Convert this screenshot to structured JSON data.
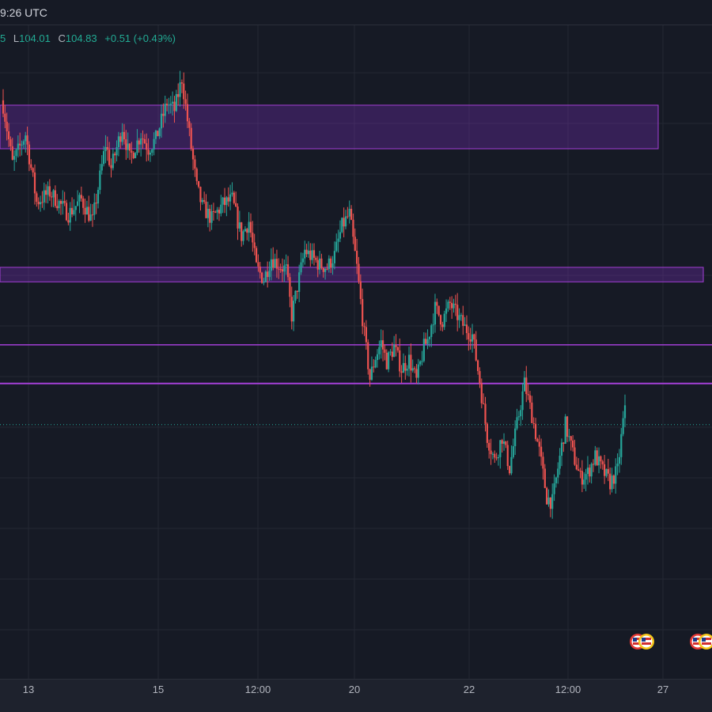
{
  "header": {
    "time_label": "9:26 UTC",
    "ohlc": {
      "low_key": "L",
      "low": "104.01",
      "close_key": "C",
      "close": "104.83",
      "change": "+0.51",
      "change_pct": "(+0.49%)",
      "partial_value": "5"
    }
  },
  "colors": {
    "background": "#161a25",
    "grid": "#242833",
    "up": "#26a69a",
    "down": "#ef5350",
    "zone_fill": "#7b2fbf",
    "zone_stroke": "#a43fd6",
    "price_line": "#26a69a"
  },
  "chart_data": {
    "type": "candlestick",
    "x_tick_labels": [
      "13",
      "15",
      "12:00",
      "20",
      "22",
      "12:00",
      "27"
    ],
    "ylim": [
      103.35,
      106.05
    ],
    "last_close": 104.83,
    "zones": [
      {
        "y_low": 105.54,
        "y_high": 105.72
      },
      {
        "y_low": 104.99,
        "y_high": 105.05
      }
    ],
    "horizontal_lines": [
      104.73,
      104.57
    ],
    "dotted_price_line": 104.4,
    "anchors": [
      [
        0,
        105.72
      ],
      [
        5,
        105.48
      ],
      [
        12,
        105.6
      ],
      [
        18,
        105.32
      ],
      [
        25,
        105.36
      ],
      [
        35,
        105.27
      ],
      [
        42,
        105.33
      ],
      [
        48,
        105.24
      ],
      [
        55,
        105.56
      ],
      [
        58,
        105.46
      ],
      [
        64,
        105.63
      ],
      [
        68,
        105.5
      ],
      [
        74,
        105.6
      ],
      [
        78,
        105.54
      ],
      [
        82,
        105.58
      ],
      [
        88,
        105.73
      ],
      [
        92,
        105.7
      ],
      [
        96,
        105.83
      ],
      [
        100,
        105.6
      ],
      [
        104,
        105.38
      ],
      [
        107,
        105.3
      ],
      [
        112,
        105.25
      ],
      [
        118,
        105.31
      ],
      [
        123,
        105.33
      ],
      [
        128,
        105.18
      ],
      [
        132,
        105.24
      ],
      [
        136,
        105.05
      ],
      [
        140,
        105.0
      ],
      [
        144,
        105.09
      ],
      [
        148,
        105.06
      ],
      [
        152,
        105.04
      ],
      [
        155,
        104.85
      ],
      [
        158,
        104.97
      ],
      [
        162,
        105.12
      ],
      [
        166,
        105.09
      ],
      [
        170,
        105.06
      ],
      [
        174,
        105.05
      ],
      [
        178,
        105.1
      ],
      [
        182,
        105.22
      ],
      [
        186,
        105.27
      ],
      [
        190,
        105.05
      ],
      [
        194,
        104.77
      ],
      [
        197,
        104.59
      ],
      [
        200,
        104.68
      ],
      [
        203,
        104.74
      ],
      [
        206,
        104.66
      ],
      [
        210,
        104.72
      ],
      [
        214,
        104.63
      ],
      [
        218,
        104.67
      ],
      [
        222,
        104.58
      ],
      [
        226,
        104.72
      ],
      [
        228,
        104.75
      ],
      [
        232,
        104.88
      ],
      [
        236,
        104.83
      ],
      [
        240,
        104.9
      ],
      [
        244,
        104.85
      ],
      [
        248,
        104.8
      ],
      [
        252,
        104.77
      ],
      [
        256,
        104.58
      ],
      [
        260,
        104.35
      ],
      [
        264,
        104.25
      ],
      [
        268,
        104.35
      ],
      [
        272,
        104.22
      ],
      [
        276,
        104.4
      ],
      [
        280,
        104.57
      ],
      [
        284,
        104.44
      ],
      [
        288,
        104.29
      ],
      [
        292,
        104.1
      ],
      [
        295,
        104.08
      ],
      [
        298,
        104.22
      ],
      [
        302,
        104.4
      ],
      [
        306,
        104.28
      ],
      [
        310,
        104.18
      ],
      [
        314,
        104.2
      ],
      [
        318,
        104.27
      ],
      [
        322,
        104.21
      ],
      [
        326,
        104.16
      ],
      [
        330,
        104.21
      ],
      [
        334,
        104.48
      ]
    ]
  }
}
